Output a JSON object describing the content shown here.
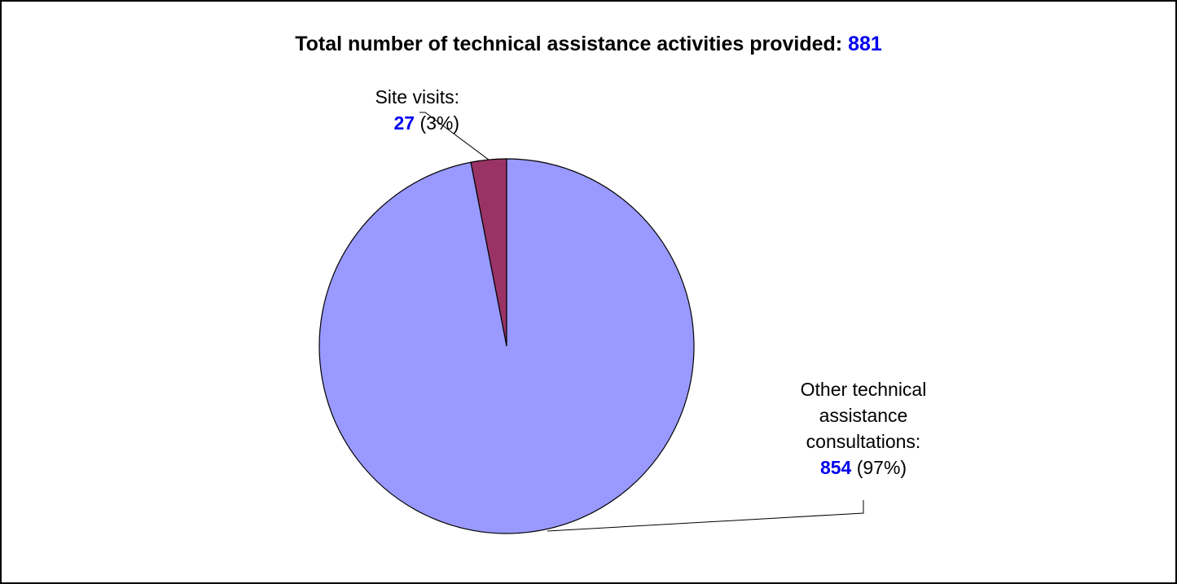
{
  "chart_data": {
    "type": "pie",
    "title": "Total number of technical assistance activities provided:",
    "total": 881,
    "slices": [
      {
        "label": "Site visits:",
        "value": 27,
        "percent_text": "(3%)",
        "color": "#993366"
      },
      {
        "label_lines": [
          "Other technical",
          "assistance",
          "consultations:"
        ],
        "value": 854,
        "percent_text": "(97%)",
        "color": "#9999ff"
      }
    ],
    "start_angle_deg": 0,
    "direction": "counterclockwise"
  }
}
